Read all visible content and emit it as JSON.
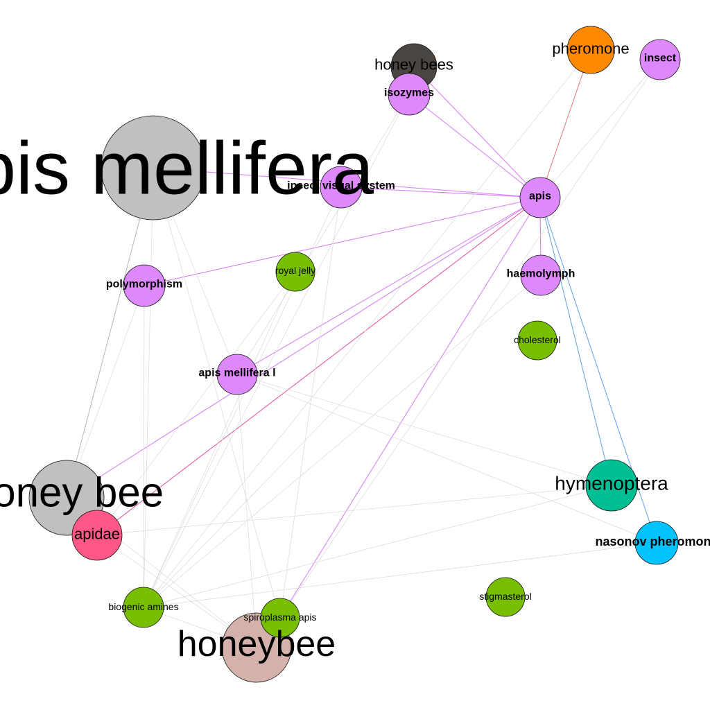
{
  "colors": {
    "gray": "#c0c0c0",
    "violet": "#dd88fb",
    "green": "#77bf00",
    "orange": "#ff8900",
    "dark": "#4a4541",
    "teal": "#00bf95",
    "sky": "#00c3ff",
    "pink": "#ff5786",
    "rose": "#d4b1ab",
    "edge_faint": "#d9d9d9",
    "edge_gray": "#bdbdbd",
    "edge_violet": "#d884f5",
    "edge_blue": "#6aa7e6",
    "edge_red": "#e98080",
    "edge_pink": "#e45ca7"
  },
  "nodes": {
    "apis_mellifera": {
      "label": "apis mellifera",
      "color": "gray",
      "icon": "circle-node"
    },
    "honey_bee": {
      "label": "honey bee",
      "color": "gray",
      "icon": "circle-node"
    },
    "honeybee": {
      "label": "honeybee",
      "color": "rose",
      "icon": "circle-node"
    },
    "honey_bees": {
      "label": "honey bees",
      "color": "dark",
      "icon": "circle-node"
    },
    "isozymes": {
      "label": "isozymes",
      "color": "violet",
      "icon": "circle-node"
    },
    "pheromone": {
      "label": "pheromone",
      "color": "orange",
      "icon": "circle-node"
    },
    "insect": {
      "label": "insect",
      "color": "violet",
      "icon": "circle-node"
    },
    "insect_visual": {
      "label": "insect visual system",
      "color": "violet",
      "icon": "circle-node"
    },
    "apis": {
      "label": "apis",
      "color": "violet",
      "icon": "circle-node"
    },
    "polymorphism": {
      "label": "polymorphism",
      "color": "violet",
      "icon": "circle-node"
    },
    "royal_jelly": {
      "label": "royal jelly",
      "color": "green",
      "icon": "circle-node"
    },
    "haemolymph": {
      "label": "haemolymph",
      "color": "violet",
      "icon": "circle-node"
    },
    "cholesterol": {
      "label": "cholesterol",
      "color": "green",
      "icon": "circle-node"
    },
    "apis_mellifera_l": {
      "label": "apis mellifera l",
      "color": "violet",
      "icon": "circle-node"
    },
    "hymenoptera": {
      "label": "hymenoptera",
      "color": "teal",
      "icon": "circle-node"
    },
    "nasonov": {
      "label": "nasonov pheromone",
      "color": "sky",
      "icon": "circle-node"
    },
    "apidae": {
      "label": "apidae",
      "color": "pink",
      "icon": "circle-node"
    },
    "biogenic_amines": {
      "label": "biogenic amines",
      "color": "green",
      "icon": "circle-node"
    },
    "spiroplasma": {
      "label": "spiroplasma apis",
      "color": "green",
      "icon": "circle-node"
    },
    "stigmasterol": {
      "label": "stigmasterol",
      "color": "green",
      "icon": "circle-node"
    }
  },
  "edges": [
    {
      "from": "apis",
      "to": "honey_bees",
      "color": "edge_violet"
    },
    {
      "from": "apis",
      "to": "isozymes",
      "color": "edge_violet"
    },
    {
      "from": "apis",
      "to": "pheromone",
      "color": "edge_red"
    },
    {
      "from": "apis",
      "to": "insect",
      "color": "edge_faint"
    },
    {
      "from": "apis",
      "to": "apis_mellifera",
      "color": "edge_violet"
    },
    {
      "from": "apis",
      "to": "insect_visual",
      "color": "edge_violet"
    },
    {
      "from": "apis",
      "to": "polymorphism",
      "color": "edge_violet"
    },
    {
      "from": "apis",
      "to": "haemolymph",
      "color": "edge_violet"
    },
    {
      "from": "apis",
      "to": "apis_mellifera_l",
      "color": "edge_violet"
    },
    {
      "from": "apis",
      "to": "apidae",
      "color": "edge_pink"
    },
    {
      "from": "apis",
      "to": "honey_bee",
      "color": "edge_violet"
    },
    {
      "from": "apis",
      "to": "spiroplasma",
      "color": "edge_violet"
    },
    {
      "from": "apis",
      "to": "hymenoptera",
      "color": "edge_blue"
    },
    {
      "from": "apis",
      "to": "nasonov",
      "color": "edge_blue"
    },
    {
      "from": "apis",
      "to": "biogenic_amines",
      "color": "edge_faint"
    },
    {
      "from": "apis_mellifera",
      "to": "honey_bee",
      "color": "edge_gray"
    },
    {
      "from": "apis_mellifera",
      "to": "biogenic_amines",
      "color": "edge_faint"
    },
    {
      "from": "apis_mellifera",
      "to": "spiroplasma",
      "color": "edge_faint"
    },
    {
      "from": "apis_mellifera",
      "to": "apis_mellifera_l",
      "color": "edge_faint"
    },
    {
      "from": "polymorphism",
      "to": "biogenic_amines",
      "color": "edge_faint"
    },
    {
      "from": "polymorphism",
      "to": "honey_bee",
      "color": "edge_faint"
    },
    {
      "from": "isozymes",
      "to": "biogenic_amines",
      "color": "edge_faint"
    },
    {
      "from": "isozymes",
      "to": "apis_mellifera_l",
      "color": "edge_faint"
    },
    {
      "from": "insect_visual",
      "to": "biogenic_amines",
      "color": "edge_faint"
    },
    {
      "from": "insect_visual",
      "to": "spiroplasma",
      "color": "edge_faint"
    },
    {
      "from": "royal_jelly",
      "to": "biogenic_amines",
      "color": "edge_faint"
    },
    {
      "from": "royal_jelly",
      "to": "apidae",
      "color": "edge_faint"
    },
    {
      "from": "apis_mellifera_l",
      "to": "hymenoptera",
      "color": "edge_faint"
    },
    {
      "from": "apis_mellifera_l",
      "to": "nasonov",
      "color": "edge_faint"
    },
    {
      "from": "apis_mellifera_l",
      "to": "honeybee",
      "color": "edge_faint"
    },
    {
      "from": "hymenoptera",
      "to": "apidae",
      "color": "edge_faint"
    },
    {
      "from": "hymenoptera",
      "to": "biogenic_amines",
      "color": "edge_faint"
    },
    {
      "from": "nasonov",
      "to": "biogenic_amines",
      "color": "edge_faint"
    },
    {
      "from": "pheromone",
      "to": "biogenic_amines",
      "color": "edge_faint"
    },
    {
      "from": "haemolymph",
      "to": "biogenic_amines",
      "color": "edge_faint"
    },
    {
      "from": "insect",
      "to": "spiroplasma",
      "color": "edge_faint"
    },
    {
      "from": "honey_bee",
      "to": "honeybee",
      "color": "edge_faint"
    },
    {
      "from": "biogenic_amines",
      "to": "honeybee",
      "color": "edge_faint"
    },
    {
      "from": "apidae",
      "to": "honeybee",
      "color": "edge_faint"
    }
  ]
}
